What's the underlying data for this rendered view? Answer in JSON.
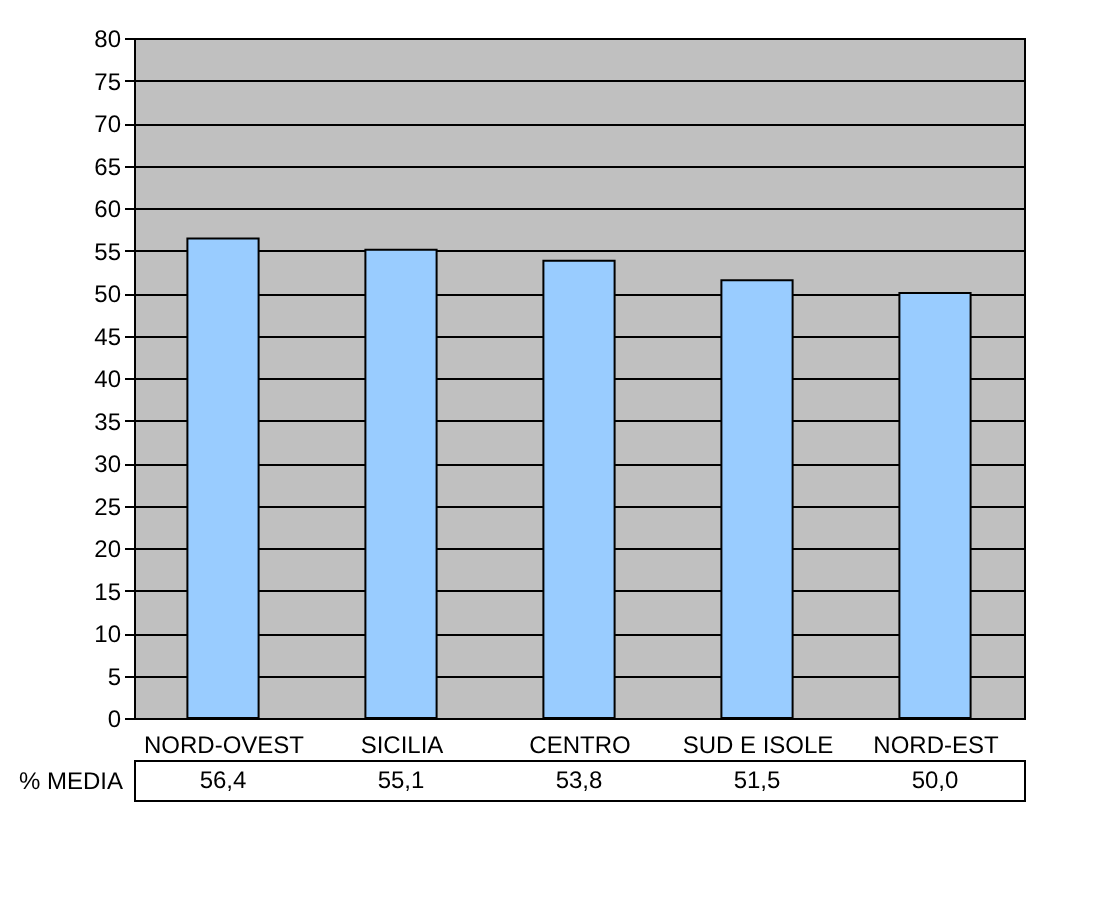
{
  "chart_data": {
    "type": "bar",
    "categories": [
      "NORD-OVEST",
      "SICILIA",
      "CENTRO",
      "SUD E ISOLE",
      "NORD-EST"
    ],
    "series": [
      {
        "name": "% MEDIA",
        "color": "#99ccff",
        "values": [
          56.4,
          55.1,
          53.8,
          51.5,
          50.0
        ],
        "value_labels": [
          "56,4",
          "55,1",
          "53,8",
          "51,5",
          "50,0"
        ]
      }
    ],
    "ylim": [
      0,
      80
    ],
    "yticks": [
      0,
      5,
      10,
      15,
      20,
      25,
      30,
      35,
      40,
      45,
      50,
      55,
      60,
      65,
      70,
      75,
      80
    ],
    "grid": "y",
    "legend": false
  }
}
